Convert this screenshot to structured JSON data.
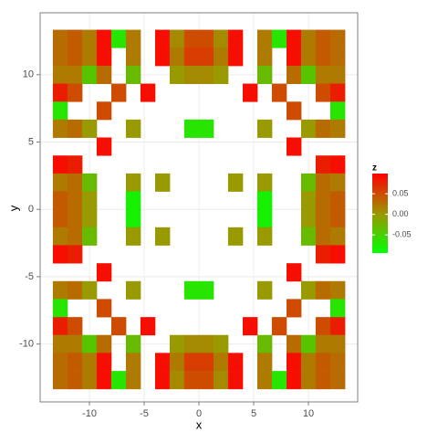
{
  "chart_data": {
    "type": "heatmap",
    "x_label": "x",
    "y_label": "y",
    "legend_title": "z",
    "x": [
      -12.67,
      -11.33,
      -10,
      -8.67,
      -7.33,
      -6,
      -4.67,
      -3.33,
      -2,
      -0.67,
      0.67,
      2,
      3.33,
      4.67,
      6,
      7.33,
      8.67,
      10,
      11.33,
      12.67
    ],
    "y": [
      12.67,
      11.33,
      10,
      8.67,
      7.33,
      6,
      4.67,
      3.33,
      2,
      0.67,
      -0.67,
      -2,
      -3.33,
      -4.67,
      -6,
      -7.33,
      -8.67,
      -10,
      -11.33,
      -12.67
    ],
    "z": [
      [
        0.03,
        0.04,
        0.02,
        0.09,
        -0.07,
        0.02,
        null,
        0.09,
        0.01,
        0.05,
        0.05,
        0.01,
        0.09,
        null,
        0.02,
        -0.07,
        0.09,
        0.02,
        0.04,
        0.03
      ],
      [
        0.03,
        0.04,
        0.02,
        0.09,
        null,
        0.02,
        null,
        0.09,
        0.02,
        0.06,
        0.06,
        0.02,
        0.09,
        null,
        0.02,
        null,
        0.09,
        0.02,
        0.04,
        0.03
      ],
      [
        0.02,
        0.02,
        -0.04,
        0.03,
        null,
        -0.03,
        null,
        null,
        0.0,
        0.01,
        0.01,
        0.0,
        null,
        null,
        -0.03,
        null,
        0.03,
        -0.04,
        0.02,
        0.02
      ],
      [
        0.08,
        0.05,
        null,
        null,
        0.05,
        null,
        0.09,
        null,
        null,
        null,
        null,
        null,
        null,
        0.09,
        null,
        0.05,
        null,
        null,
        0.05,
        0.08
      ],
      [
        -0.07,
        null,
        null,
        0.05,
        null,
        null,
        null,
        null,
        null,
        null,
        null,
        null,
        null,
        null,
        null,
        null,
        0.05,
        null,
        null,
        -0.07
      ],
      [
        0.02,
        0.03,
        0.0,
        null,
        null,
        0.0,
        null,
        null,
        null,
        -0.07,
        -0.07,
        null,
        null,
        null,
        0.0,
        null,
        null,
        0.0,
        0.03,
        0.02
      ],
      [
        null,
        null,
        null,
        0.09,
        null,
        null,
        null,
        null,
        null,
        null,
        null,
        null,
        null,
        null,
        null,
        null,
        0.09,
        null,
        null,
        null
      ],
      [
        0.09,
        0.08,
        null,
        null,
        null,
        null,
        null,
        null,
        null,
        null,
        null,
        null,
        null,
        null,
        null,
        null,
        null,
        null,
        0.08,
        0.09
      ],
      [
        0.02,
        0.03,
        -0.03,
        null,
        null,
        0.0,
        null,
        0.0,
        null,
        null,
        null,
        null,
        0.0,
        null,
        0.0,
        null,
        null,
        -0.03,
        0.03,
        0.02
      ],
      [
        0.04,
        0.03,
        0.0,
        null,
        null,
        -0.08,
        null,
        null,
        null,
        null,
        null,
        null,
        null,
        null,
        -0.08,
        null,
        null,
        0.0,
        0.03,
        0.04
      ],
      [
        0.04,
        0.03,
        0.0,
        null,
        null,
        -0.08,
        null,
        null,
        null,
        null,
        null,
        null,
        null,
        null,
        -0.08,
        null,
        null,
        0.0,
        0.03,
        0.04
      ],
      [
        0.02,
        0.03,
        -0.03,
        null,
        null,
        0.0,
        null,
        0.0,
        null,
        null,
        null,
        null,
        0.0,
        null,
        0.0,
        null,
        null,
        -0.03,
        0.03,
        0.02
      ],
      [
        0.09,
        0.08,
        null,
        null,
        null,
        null,
        null,
        null,
        null,
        null,
        null,
        null,
        null,
        null,
        null,
        null,
        null,
        null,
        0.08,
        0.09
      ],
      [
        null,
        null,
        null,
        0.09,
        null,
        null,
        null,
        null,
        null,
        null,
        null,
        null,
        null,
        null,
        null,
        null,
        0.09,
        null,
        null,
        null
      ],
      [
        0.02,
        0.03,
        0.0,
        null,
        null,
        0.0,
        null,
        null,
        null,
        -0.07,
        -0.07,
        null,
        null,
        null,
        0.0,
        null,
        null,
        0.0,
        0.03,
        0.02
      ],
      [
        -0.07,
        null,
        null,
        0.05,
        null,
        null,
        null,
        null,
        null,
        null,
        null,
        null,
        null,
        null,
        null,
        null,
        0.05,
        null,
        null,
        -0.07
      ],
      [
        0.08,
        0.05,
        null,
        null,
        0.05,
        null,
        0.09,
        null,
        null,
        null,
        null,
        null,
        null,
        0.09,
        null,
        0.05,
        null,
        null,
        0.05,
        0.08
      ],
      [
        0.02,
        0.02,
        -0.04,
        0.03,
        null,
        -0.03,
        null,
        null,
        0.0,
        0.01,
        0.01,
        0.0,
        null,
        null,
        -0.03,
        null,
        0.03,
        -0.04,
        0.02,
        0.02
      ],
      [
        0.03,
        0.04,
        0.02,
        0.09,
        null,
        0.02,
        null,
        0.09,
        0.02,
        0.06,
        0.06,
        0.02,
        0.09,
        null,
        0.02,
        null,
        0.09,
        0.02,
        0.04,
        0.03
      ],
      [
        0.03,
        0.04,
        0.02,
        0.09,
        -0.07,
        0.02,
        null,
        0.09,
        0.01,
        0.05,
        0.05,
        0.01,
        0.09,
        null,
        0.02,
        -0.07,
        0.09,
        0.02,
        0.04,
        0.03
      ]
    ],
    "xlim": [
      -14.5,
      14.5
    ],
    "ylim": [
      -14.3,
      14.6
    ],
    "xticks": [
      -10,
      -5,
      0,
      5,
      10
    ],
    "yticks": [
      -10,
      -5,
      0,
      5,
      10
    ],
    "zlim": [
      -0.094,
      0.099
    ],
    "fill_midpoint": 0,
    "zticks": [
      0.05,
      {
        "value": 0,
        "label": "0.00"
      },
      -0.05
    ],
    "fill_colors": {
      "low": "#00ff00",
      "mid": "#999900",
      "high": "#ff0000"
    },
    "grid": true
  }
}
